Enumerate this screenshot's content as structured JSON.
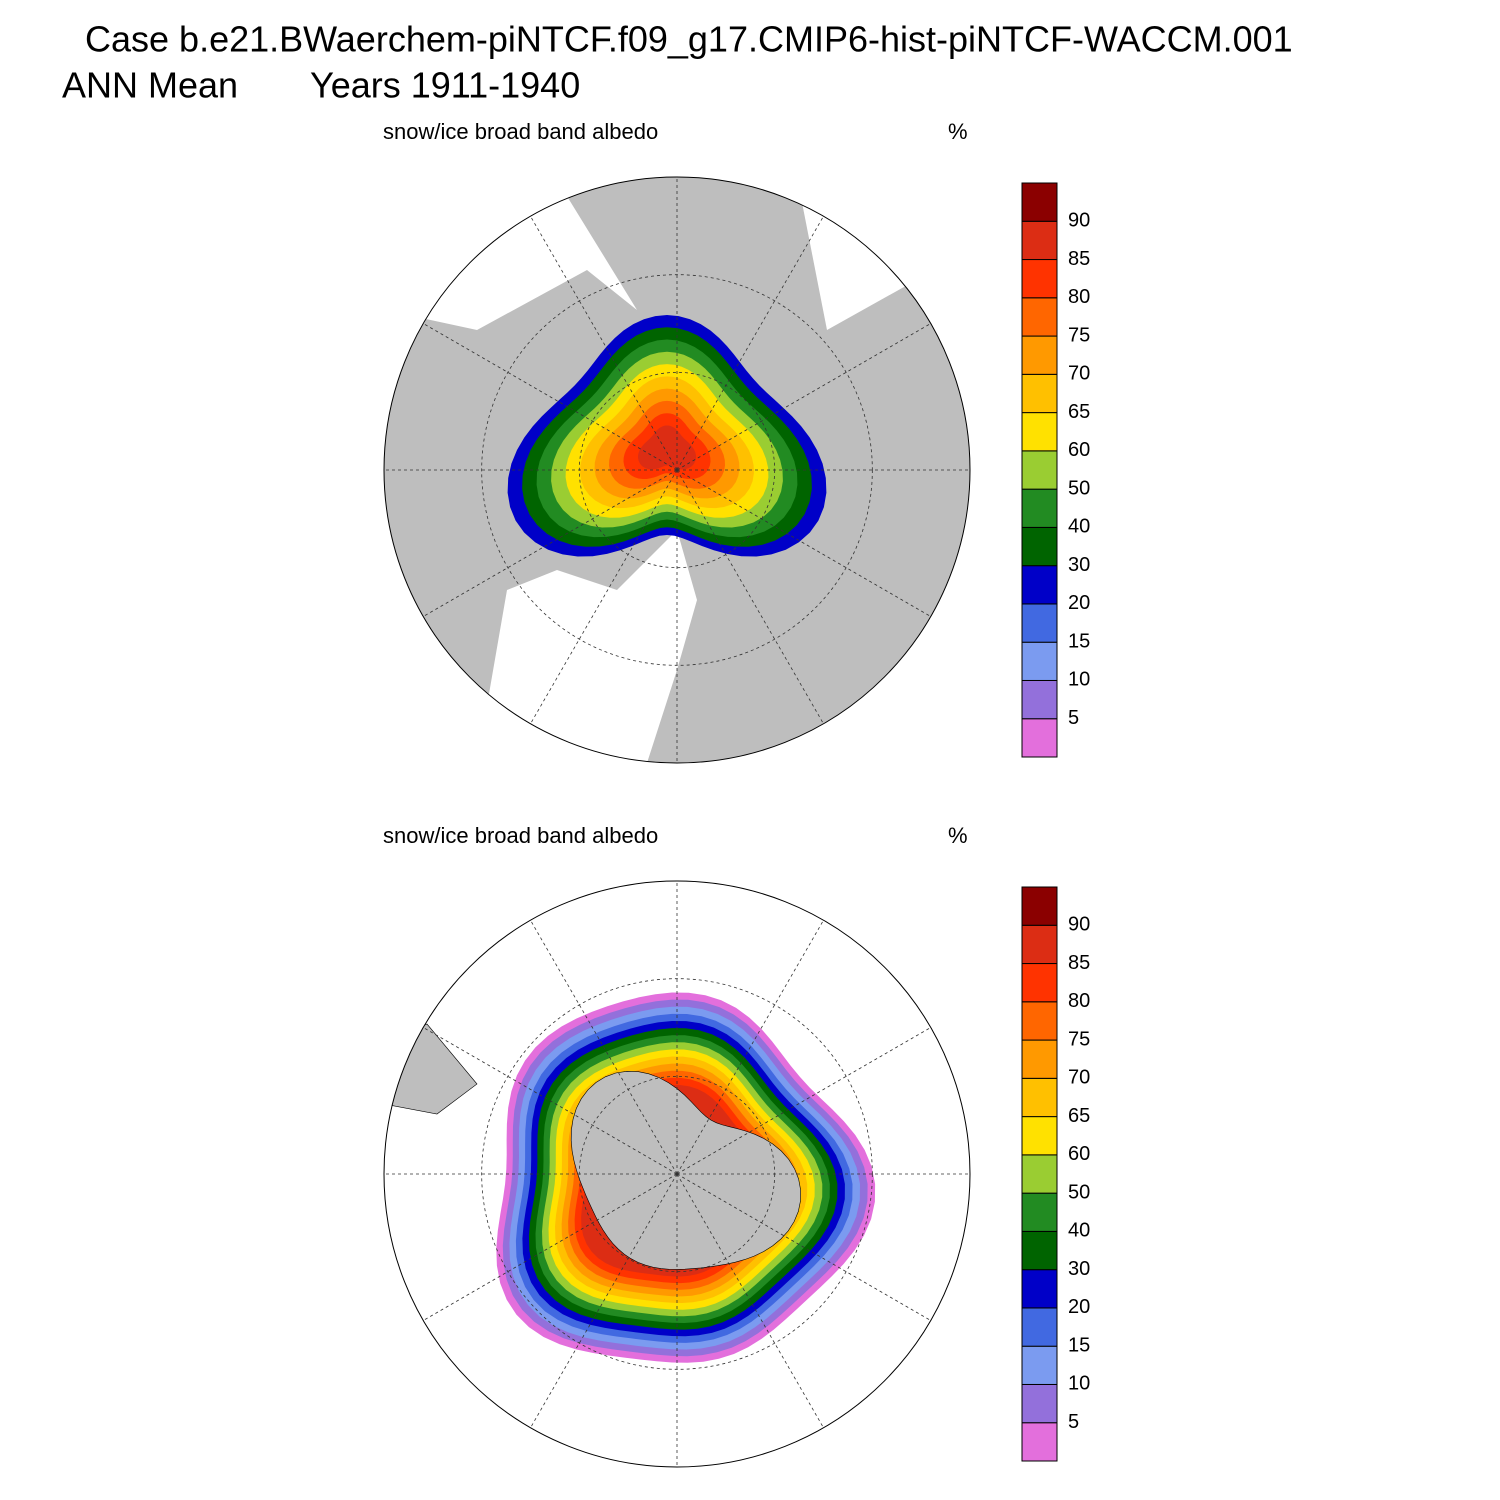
{
  "header": {
    "title": "Case b.e21.BWaerchem-piNTCF.f09_g17.CMIP6-hist-piNTCF-WACCM.001",
    "mean": "ANN Mean",
    "years": "Years 1911-1940"
  },
  "panels": [
    {
      "title": "snow/ice broad band albedo",
      "units": "%",
      "hemisphere": "north"
    },
    {
      "title": "snow/ice broad band albedo",
      "units": "%",
      "hemisphere": "south"
    }
  ],
  "colorbar": {
    "levels": [
      5,
      10,
      15,
      20,
      30,
      40,
      50,
      60,
      65,
      70,
      75,
      80,
      85,
      90
    ],
    "colors": [
      "#e36fdc",
      "#9370db",
      "#7b9bf0",
      "#4169e1",
      "#0000c8",
      "#006400",
      "#228b22",
      "#9acd32",
      "#ffe100",
      "#ffc000",
      "#ff9900",
      "#ff6600",
      "#ff3300",
      "#dc2d14",
      "#8b0000"
    ],
    "land_color": "#bebebe"
  }
}
